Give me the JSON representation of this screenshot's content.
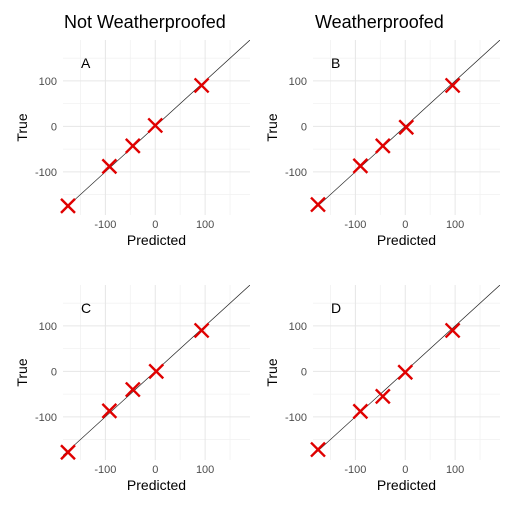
{
  "titles": {
    "left": "Not Weatherproofed",
    "right": "Weatherproofed"
  },
  "colors": {
    "marker": "#e00000",
    "diagonal": "#222222",
    "grid_major": "#e6e6e6",
    "grid_minor": "#f2f2f2",
    "tick_text": "#4d4d4d"
  },
  "chart_data": [
    {
      "type": "scatter",
      "panel_label": "A",
      "xlabel": "Predicted",
      "ylabel": "True",
      "xlim": [
        -185,
        190
      ],
      "ylim": [
        -195,
        190
      ],
      "x_ticks": [
        -100,
        0,
        100
      ],
      "y_ticks": [
        -100,
        0,
        100
      ],
      "grid": true,
      "reference_line": "y = x",
      "points": [
        {
          "x": -175,
          "y": -175
        },
        {
          "x": -92,
          "y": -88
        },
        {
          "x": -45,
          "y": -43
        },
        {
          "x": 0,
          "y": 2
        },
        {
          "x": 93,
          "y": 90
        }
      ]
    },
    {
      "type": "scatter",
      "panel_label": "B",
      "xlabel": "Predicted",
      "ylabel": "True",
      "xlim": [
        -185,
        190
      ],
      "ylim": [
        -195,
        190
      ],
      "x_ticks": [
        -100,
        0,
        100
      ],
      "y_ticks": [
        -100,
        0,
        100
      ],
      "grid": true,
      "reference_line": "y = x",
      "points": [
        {
          "x": -175,
          "y": -172
        },
        {
          "x": -90,
          "y": -87
        },
        {
          "x": -45,
          "y": -43
        },
        {
          "x": 2,
          "y": -2
        },
        {
          "x": 95,
          "y": 90
        }
      ]
    },
    {
      "type": "scatter",
      "panel_label": "C",
      "xlabel": "Predicted",
      "ylabel": "True",
      "xlim": [
        -185,
        190
      ],
      "ylim": [
        -195,
        190
      ],
      "x_ticks": [
        -100,
        0,
        100
      ],
      "y_ticks": [
        -100,
        0,
        100
      ],
      "grid": true,
      "reference_line": "y = x",
      "points": [
        {
          "x": -175,
          "y": -178
        },
        {
          "x": -92,
          "y": -87
        },
        {
          "x": -45,
          "y": -40
        },
        {
          "x": 2,
          "y": 0
        },
        {
          "x": 93,
          "y": 90
        }
      ]
    },
    {
      "type": "scatter",
      "panel_label": "D",
      "xlabel": "Predicted",
      "ylabel": "True",
      "xlim": [
        -185,
        190
      ],
      "ylim": [
        -195,
        190
      ],
      "x_ticks": [
        -100,
        0,
        100
      ],
      "y_ticks": [
        -100,
        0,
        100
      ],
      "grid": true,
      "reference_line": "y = x",
      "points": [
        {
          "x": -175,
          "y": -172
        },
        {
          "x": -90,
          "y": -88
        },
        {
          "x": -45,
          "y": -55
        },
        {
          "x": 0,
          "y": -2
        },
        {
          "x": 95,
          "y": 90
        }
      ]
    }
  ]
}
